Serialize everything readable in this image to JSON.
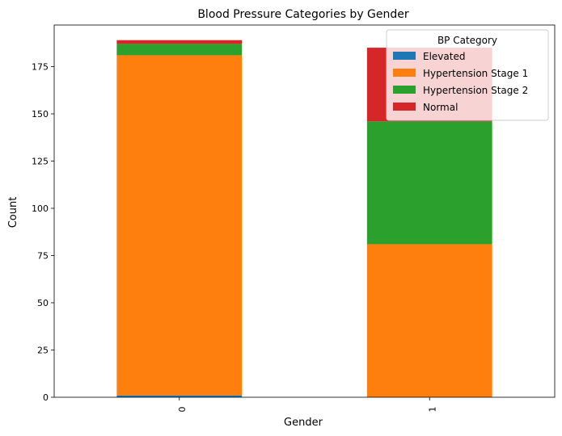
{
  "chart_data": {
    "type": "bar",
    "stacked": true,
    "title": "Blood Pressure Categories by Gender",
    "xlabel": "Gender",
    "ylabel": "Count",
    "categories": [
      "0",
      "1"
    ],
    "ylim": [
      0,
      197
    ],
    "yticks": [
      "0",
      "25",
      "50",
      "75",
      "100",
      "125",
      "150",
      "175"
    ],
    "series": [
      {
        "name": "Elevated",
        "color": "#1f77b4",
        "values": [
          1,
          0
        ]
      },
      {
        "name": "Hypertension Stage 1",
        "color": "#ff7f0e",
        "values": [
          180,
          81
        ]
      },
      {
        "name": "Hypertension Stage 2",
        "color": "#2ca02c",
        "values": [
          6,
          65
        ]
      },
      {
        "name": "Normal",
        "color": "#d62728",
        "values": [
          2,
          39
        ]
      }
    ],
    "legend": {
      "title": "BP Category",
      "placement": "top-right"
    },
    "grid": false
  }
}
